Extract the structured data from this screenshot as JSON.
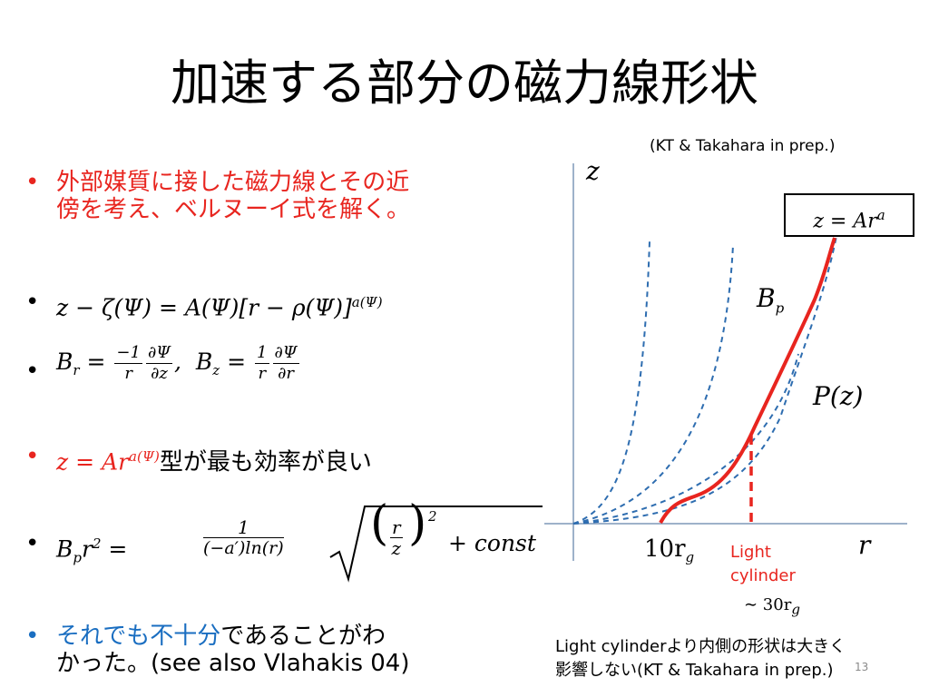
{
  "slide": {
    "title": "加速する部分の磁力線形状",
    "citation": "(KT & Takahara in prep.)",
    "page_number": "13"
  },
  "bullets": {
    "b1_line1": "外部媒質に接した磁力線とその近",
    "b1_line2": "傍を考え、ベルヌーイ式を解く。",
    "b2_eq": "z − ζ(Ψ) = A(Ψ)[r − ρ(Ψ)]",
    "b2_exp": "a(Ψ)",
    "b3_lhs1": "B",
    "b3_sub1": "r",
    "b3_num1": "−1",
    "b3_den1a": "r",
    "b3_num2": "∂Ψ",
    "b3_den2": "∂z",
    "b3_lhs2": "B",
    "b3_sub2": "z",
    "b3_num3": "1",
    "b3_den3": "r",
    "b3_num4": "∂Ψ",
    "b3_den4": "∂r",
    "b4_eq": "z = Ar",
    "b4_exp": "a(Ψ)",
    "b4_text": "型が最も効率が良い",
    "b5_lhs": "B",
    "b5_sub": "p",
    "b5_r2": "r",
    "b5_num": "1",
    "b5_den": "(−a′)ln(r)",
    "b5_paren_num": "r",
    "b5_paren_den": "z",
    "b5_tail": "+ const",
    "b6_blue": "それでも不十分",
    "b6_rest1": "であることがわ",
    "b6_line2": "かった。(see also Vlahakis 04)"
  },
  "figure": {
    "axis_z": "z",
    "axis_r": "r",
    "eq_box": "z = Ar",
    "eq_box_exp": "a",
    "label_bp": "B",
    "label_bp_sub": "p",
    "label_pz": "P(z)",
    "label_10rg": "10r",
    "label_10rg_sub": "g",
    "light_cylinder_line1": "Light",
    "light_cylinder_line2": "cylinder",
    "light_cylinder_val": "∼ 30r",
    "light_cylinder_val_sub": "g",
    "caption_line1": "Light cylinderより内側の形状は大きく",
    "caption_line2": "影響しない(KT & Takahara in prep.)",
    "colors": {
      "field_line": "#e8251f",
      "dashed_curves": "#2e6db0",
      "axis": "#7f98b8"
    }
  }
}
